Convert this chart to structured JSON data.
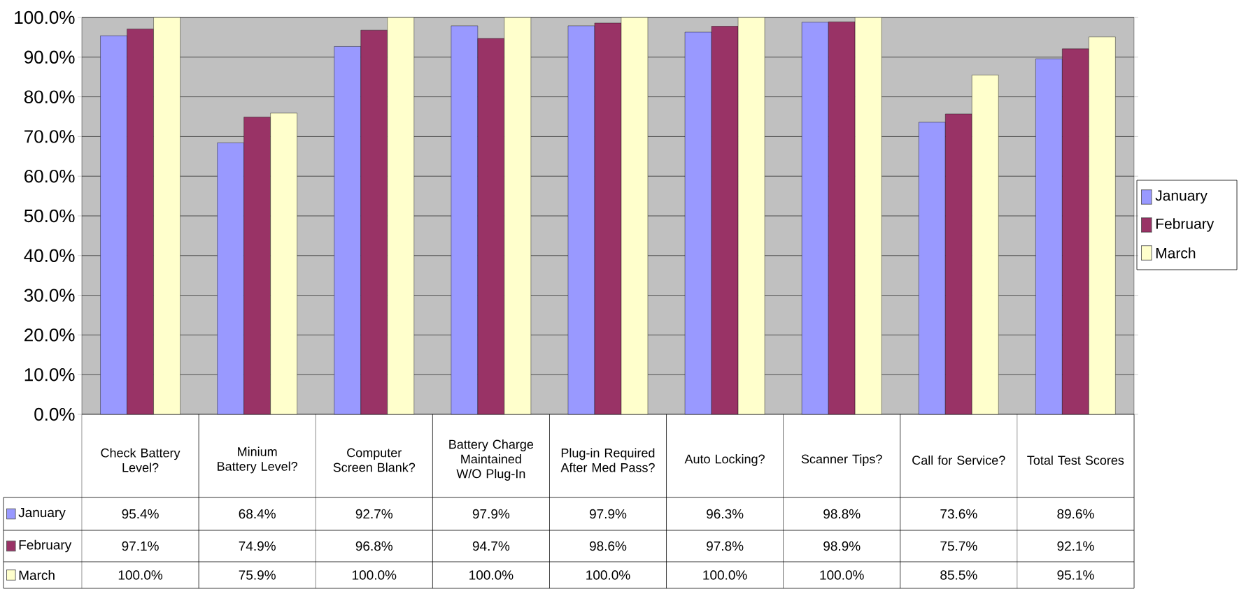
{
  "chart_data": {
    "type": "bar",
    "categories": [
      "Check Battery Level?",
      "Minium Battery Level?",
      "Computer Screen Blank?",
      "Battery Charge Maintained W/O Plug-In",
      "Plug-in Required After Med Pass?",
      "Auto Locking?",
      "Scanner Tips?",
      "Call for Service?",
      "Total Test Scores"
    ],
    "series": [
      {
        "name": "January",
        "color": "#9999ff",
        "values": [
          95.4,
          68.4,
          92.7,
          97.9,
          97.9,
          96.3,
          98.8,
          73.6,
          89.6
        ],
        "value_labels": [
          "95.4%",
          "68.4%",
          "92.7%",
          "97.9%",
          "97.9%",
          "96.3%",
          "98.8%",
          "73.6%",
          "89.6%"
        ]
      },
      {
        "name": "February",
        "color": "#993366",
        "values": [
          97.1,
          74.9,
          96.8,
          94.7,
          98.6,
          97.8,
          98.9,
          75.7,
          92.1
        ],
        "value_labels": [
          "97.1%",
          "74.9%",
          "96.8%",
          "94.7%",
          "98.6%",
          "97.8%",
          "98.9%",
          "75.7%",
          "92.1%"
        ]
      },
      {
        "name": "March",
        "color": "#ffffcc",
        "values": [
          100.0,
          75.9,
          100.0,
          100.0,
          100.0,
          100.0,
          100.0,
          85.5,
          95.1
        ],
        "value_labels": [
          "100.0%",
          "75.9%",
          "100.0%",
          "100.0%",
          "100.0%",
          "100.0%",
          "100.0%",
          "85.5%",
          "95.1%"
        ]
      }
    ],
    "ylim": [
      0,
      100
    ],
    "yticks": [
      {
        "value": 0,
        "label": "0.0%"
      },
      {
        "value": 10,
        "label": "10.0%"
      },
      {
        "value": 20,
        "label": "20.0%"
      },
      {
        "value": 30,
        "label": "30.0%"
      },
      {
        "value": 40,
        "label": "40.0%"
      },
      {
        "value": 50,
        "label": "50.0%"
      },
      {
        "value": 60,
        "label": "60.0%"
      },
      {
        "value": 70,
        "label": "70.0%"
      },
      {
        "value": 80,
        "label": "80.0%"
      },
      {
        "value": 90,
        "label": "90.0%"
      },
      {
        "value": 100,
        "label": "100.0%"
      }
    ],
    "grid": "y",
    "legend": "right"
  }
}
